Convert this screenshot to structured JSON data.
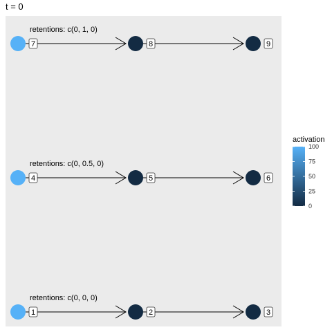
{
  "title": "t = 0",
  "colors": {
    "panel_background": "#ebebeb",
    "edge": "#000000",
    "low": "#132b43",
    "high": "#56b1f7",
    "label_fill": "#ffffff",
    "label_border": "#333333"
  },
  "graph": {
    "rows": [
      {
        "retention_label": "retentions: c(0, 1, 0)",
        "nodes": [
          {
            "id": "7",
            "activation": 100
          },
          {
            "id": "8",
            "activation": 0
          },
          {
            "id": "9",
            "activation": 0
          }
        ]
      },
      {
        "retention_label": "retentions: c(0, 0.5, 0)",
        "nodes": [
          {
            "id": "4",
            "activation": 100
          },
          {
            "id": "5",
            "activation": 0
          },
          {
            "id": "6",
            "activation": 0
          }
        ]
      },
      {
        "retention_label": "retentions: c(0, 0, 0)",
        "nodes": [
          {
            "id": "1",
            "activation": 100
          },
          {
            "id": "2",
            "activation": 0
          },
          {
            "id": "3",
            "activation": 0
          }
        ]
      }
    ]
  },
  "legend": {
    "title": "activation",
    "min": 0,
    "max": 100,
    "ticks": [
      "100",
      "75",
      "50",
      "25",
      "0"
    ]
  }
}
